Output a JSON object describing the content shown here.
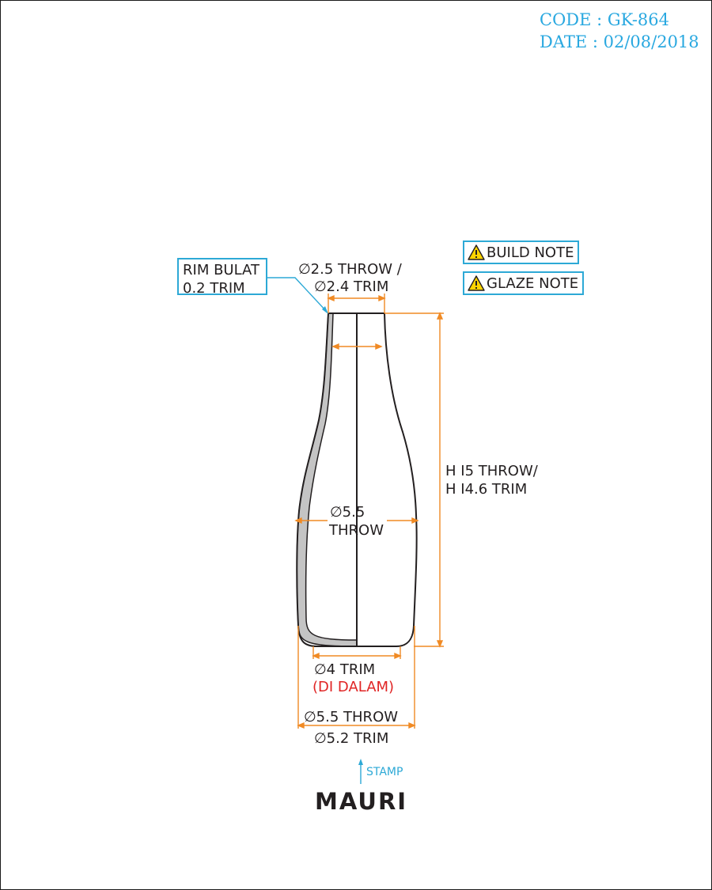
{
  "header": {
    "code": "CODE : GK-864",
    "date": "DATE : 02/08/2018"
  },
  "callout": {
    "line1": "RIM BULAT",
    "line2": "0.2 TRIM"
  },
  "notes": [
    {
      "label": "BUILD NOTE",
      "icon": "warning-icon"
    },
    {
      "label": "GLAZE NOTE",
      "icon": "warning-icon"
    }
  ],
  "dimensions": {
    "top_line1": "∅2.5 THROW /",
    "top_line2": "∅2.4 TRIM",
    "height_line1": "H I5 THROW/",
    "height_line2": "H I4.6 TRIM",
    "body_line1": "∅5.5",
    "body_line2": "THROW",
    "foot_inner_line1": "∅4 TRIM",
    "foot_inner_line2": "(DI DALAM)",
    "base_line1": "∅5.5 THROW",
    "base_line2": "∅5.2 TRIM"
  },
  "stamp": {
    "label": "STAMP",
    "logo_text": "MAURI"
  },
  "colors": {
    "dimension": "#f08a24",
    "callout": "#2da9d6",
    "header_text": "#29a8e0",
    "warning_fill": "#ffd400",
    "red_note": "#e02424",
    "outline": "#231f20",
    "wall_fill": "#c4c4c4"
  }
}
